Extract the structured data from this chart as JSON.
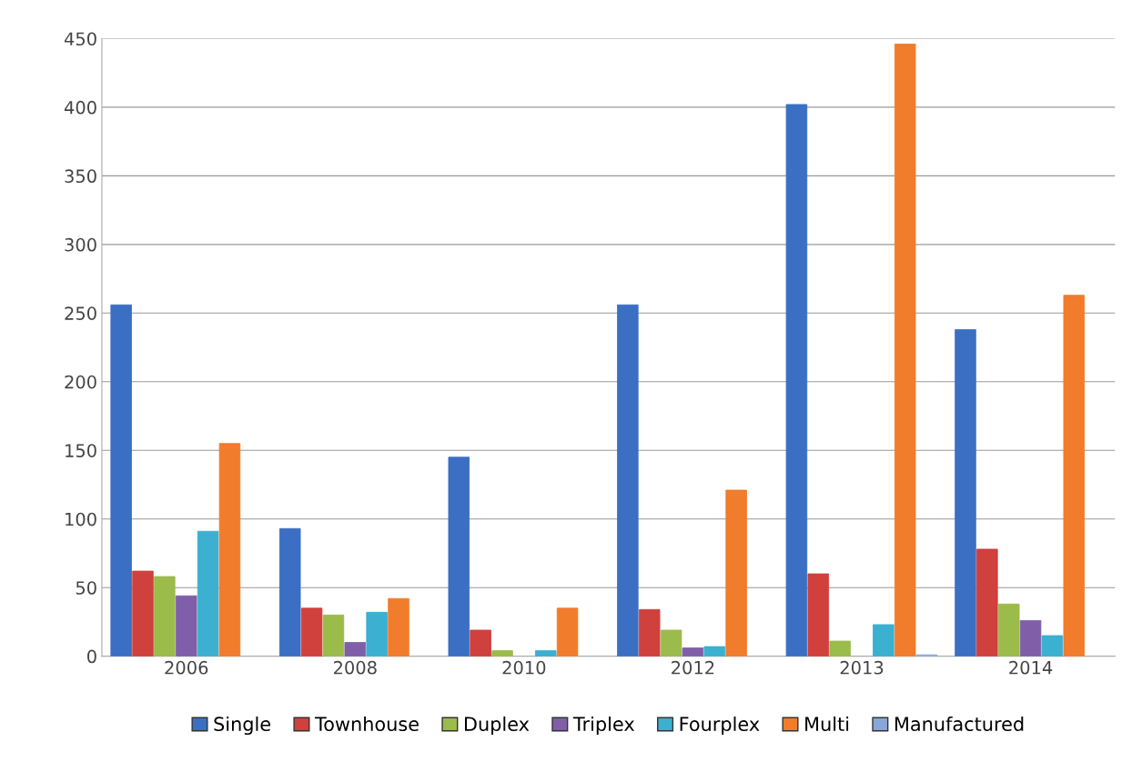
{
  "chart_data": {
    "type": "bar",
    "categories": [
      "2006",
      "2008",
      "2010",
      "2012",
      "2013",
      "2014"
    ],
    "series": [
      {
        "name": "Single",
        "color": "#3a6fc4",
        "values": [
          256,
          93,
          145,
          256,
          402,
          238
        ]
      },
      {
        "name": "Townhouse",
        "color": "#d0403c",
        "values": [
          62,
          35,
          19,
          34,
          60,
          78
        ]
      },
      {
        "name": "Duplex",
        "color": "#9bbb4a",
        "values": [
          58,
          30,
          4,
          19,
          11,
          38
        ]
      },
      {
        "name": "Triplex",
        "color": "#7f5fa8",
        "values": [
          44,
          10,
          null,
          6,
          null,
          26
        ]
      },
      {
        "name": "Fourplex",
        "color": "#3bb0d0",
        "values": [
          91,
          32,
          4,
          7,
          23,
          15
        ]
      },
      {
        "name": "Multi",
        "color": "#f07c2c",
        "values": [
          155,
          42,
          35,
          121,
          446,
          263
        ]
      },
      {
        "name": "Manufactured",
        "color": "#8aa6d8",
        "values": [
          null,
          null,
          null,
          null,
          1,
          null
        ]
      }
    ],
    "ylim": [
      0,
      450
    ],
    "yticks": [
      0,
      50,
      100,
      150,
      200,
      250,
      300,
      350,
      400,
      450
    ],
    "grid": "y",
    "legend": "bottom"
  }
}
